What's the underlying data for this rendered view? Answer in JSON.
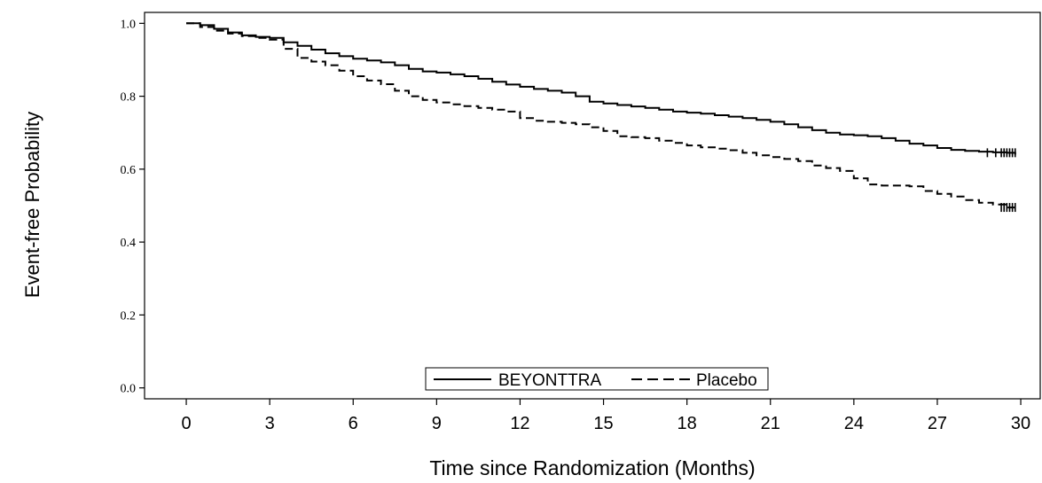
{
  "chart_data": {
    "type": "line",
    "title": "",
    "xlabel": "Time since Randomization (Months)",
    "ylabel": "Event-free Probability",
    "xlim": [
      -1.5,
      30.7
    ],
    "ylim": [
      -0.03,
      1.03
    ],
    "xticks": [
      0,
      3,
      6,
      9,
      12,
      15,
      18,
      21,
      24,
      27,
      30
    ],
    "xtick_labels": [
      "0",
      "3",
      "6",
      "9",
      "12",
      "15",
      "18",
      "21",
      "24",
      "27",
      "30"
    ],
    "yticks": [
      0.0,
      0.2,
      0.4,
      0.6,
      0.8,
      1.0
    ],
    "ytick_labels": [
      "0.0",
      "0.2",
      "0.4",
      "0.6",
      "0.8",
      "1.0"
    ],
    "grid": false,
    "legend_position": "bottom-center",
    "series": [
      {
        "name": "BEYONTTRA",
        "style": "solid",
        "color": "#000000",
        "step": true,
        "x": [
          0,
          0.5,
          1.0,
          1.5,
          2.0,
          2.5,
          3.0,
          3.5,
          4.0,
          4.5,
          5.0,
          5.5,
          6.0,
          6.5,
          7.0,
          7.5,
          8.0,
          8.5,
          9.0,
          9.5,
          10.0,
          10.5,
          11.0,
          11.5,
          12.0,
          12.5,
          13.0,
          13.5,
          14.0,
          14.5,
          15.0,
          15.5,
          16.0,
          16.5,
          17.0,
          17.5,
          18.0,
          18.5,
          19.0,
          19.5,
          20.0,
          20.5,
          21.0,
          21.5,
          22.0,
          22.5,
          23.0,
          23.5,
          24.0,
          24.5,
          25.0,
          25.5,
          26.0,
          26.5,
          27.0,
          27.5,
          28.0,
          28.5,
          29.0,
          29.5,
          29.8
        ],
        "y": [
          1.0,
          0.995,
          0.985,
          0.975,
          0.967,
          0.963,
          0.96,
          0.948,
          0.938,
          0.928,
          0.918,
          0.91,
          0.903,
          0.898,
          0.893,
          0.885,
          0.875,
          0.868,
          0.865,
          0.86,
          0.855,
          0.848,
          0.84,
          0.832,
          0.826,
          0.82,
          0.815,
          0.81,
          0.8,
          0.785,
          0.78,
          0.776,
          0.772,
          0.768,
          0.763,
          0.758,
          0.755,
          0.752,
          0.748,
          0.744,
          0.74,
          0.735,
          0.73,
          0.723,
          0.715,
          0.707,
          0.7,
          0.695,
          0.693,
          0.69,
          0.685,
          0.678,
          0.67,
          0.665,
          0.658,
          0.653,
          0.65,
          0.648,
          0.646,
          0.645,
          0.64
        ]
      },
      {
        "name": "Placebo",
        "style": "dashed",
        "color": "#000000",
        "step": true,
        "x": [
          0,
          0.5,
          1.0,
          1.5,
          2.0,
          2.5,
          3.0,
          3.5,
          4.0,
          4.5,
          5.0,
          5.5,
          6.0,
          6.5,
          7.0,
          7.5,
          8.0,
          8.5,
          9.0,
          9.5,
          10.0,
          10.5,
          11.0,
          11.5,
          12.0,
          12.5,
          13.0,
          13.5,
          14.0,
          14.5,
          15.0,
          15.5,
          16.0,
          16.5,
          17.0,
          17.5,
          18.0,
          18.5,
          19.0,
          19.5,
          20.0,
          20.5,
          21.0,
          21.5,
          22.0,
          22.5,
          23.0,
          23.5,
          24.0,
          24.5,
          25.0,
          25.5,
          26.0,
          26.5,
          27.0,
          27.5,
          28.0,
          28.5,
          29.0,
          29.5,
          29.8
        ],
        "y": [
          1.0,
          0.99,
          0.98,
          0.972,
          0.965,
          0.96,
          0.955,
          0.93,
          0.905,
          0.895,
          0.885,
          0.87,
          0.855,
          0.843,
          0.833,
          0.815,
          0.8,
          0.79,
          0.783,
          0.778,
          0.773,
          0.768,
          0.763,
          0.758,
          0.74,
          0.733,
          0.73,
          0.727,
          0.723,
          0.715,
          0.705,
          0.69,
          0.688,
          0.685,
          0.678,
          0.672,
          0.665,
          0.66,
          0.656,
          0.652,
          0.645,
          0.638,
          0.633,
          0.628,
          0.622,
          0.61,
          0.603,
          0.595,
          0.575,
          0.558,
          0.555,
          0.555,
          0.553,
          0.54,
          0.532,
          0.525,
          0.515,
          0.508,
          0.503,
          0.495,
          0.495
        ]
      }
    ],
    "censor_marks": [
      {
        "series": "BEYONTTRA",
        "x": [
          28.8,
          29.1,
          29.3,
          29.4,
          29.5,
          29.6,
          29.7,
          29.8
        ],
        "y": 0.645
      },
      {
        "series": "Placebo",
        "x": [
          29.3,
          29.4,
          29.5,
          29.6,
          29.7,
          29.8
        ],
        "y": 0.495
      }
    ]
  }
}
